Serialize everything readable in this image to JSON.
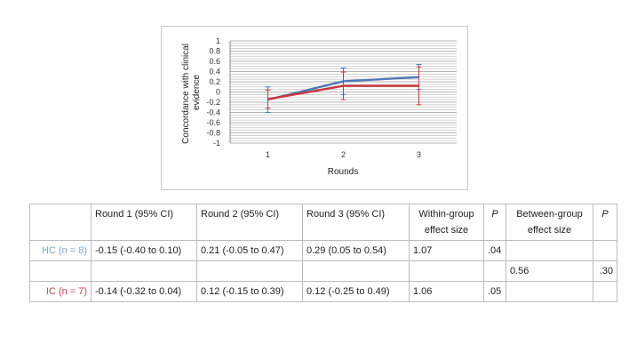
{
  "chart_data": {
    "type": "line",
    "xlabel": "Rounds",
    "ylabel": "Concordance with clinical evidence",
    "categories": [
      "1",
      "2",
      "3"
    ],
    "ylim": [
      -1,
      1
    ],
    "yticks": [
      "1",
      "0.8",
      "0.6",
      "0.4",
      "0.2",
      "0",
      "-0.2",
      "-0.4",
      "-0.6",
      "-0.8",
      "-1"
    ],
    "grid": true,
    "series": [
      {
        "color": "#4f79b3",
        "values": [
          -0.15,
          0.21,
          0.29
        ],
        "ci_low": [
          -0.4,
          -0.05,
          0.05
        ],
        "ci_high": [
          0.1,
          0.47,
          0.54
        ]
      },
      {
        "color": "#c9373b",
        "values": [
          -0.14,
          0.12,
          0.12
        ],
        "ci_low": [
          -0.32,
          -0.15,
          -0.25
        ],
        "ci_high": [
          0.04,
          0.39,
          0.49
        ]
      }
    ]
  },
  "table": {
    "header": {
      "blank": "",
      "round1": "Round 1 (95% CI)",
      "round2": "Round 2 (95% CI)",
      "round3": "Round 3 (95% CI)",
      "within": "Within-group effect size",
      "p1": "P",
      "between": "Between-group effect size",
      "p2": "P"
    },
    "hc": {
      "label": "HC (n = 8)",
      "round1": "-0.15 (-0.40 to 0.10)",
      "round2": "0.21 (-0.05 to 0.47)",
      "round3": "0.29 (0.05 to 0.54)",
      "within": "1.07",
      "p": ".04"
    },
    "between": {
      "value": "0.56",
      "p": ".30"
    },
    "ic": {
      "label": "IC (n = 7)",
      "round1": "-0.14 (-0.32 to 0.04)",
      "round2": "0.12 (-0.15 to 0.39)",
      "round3": "0.12 (-0.25 to 0.49)",
      "within": "1.06",
      "p": ".05"
    }
  }
}
